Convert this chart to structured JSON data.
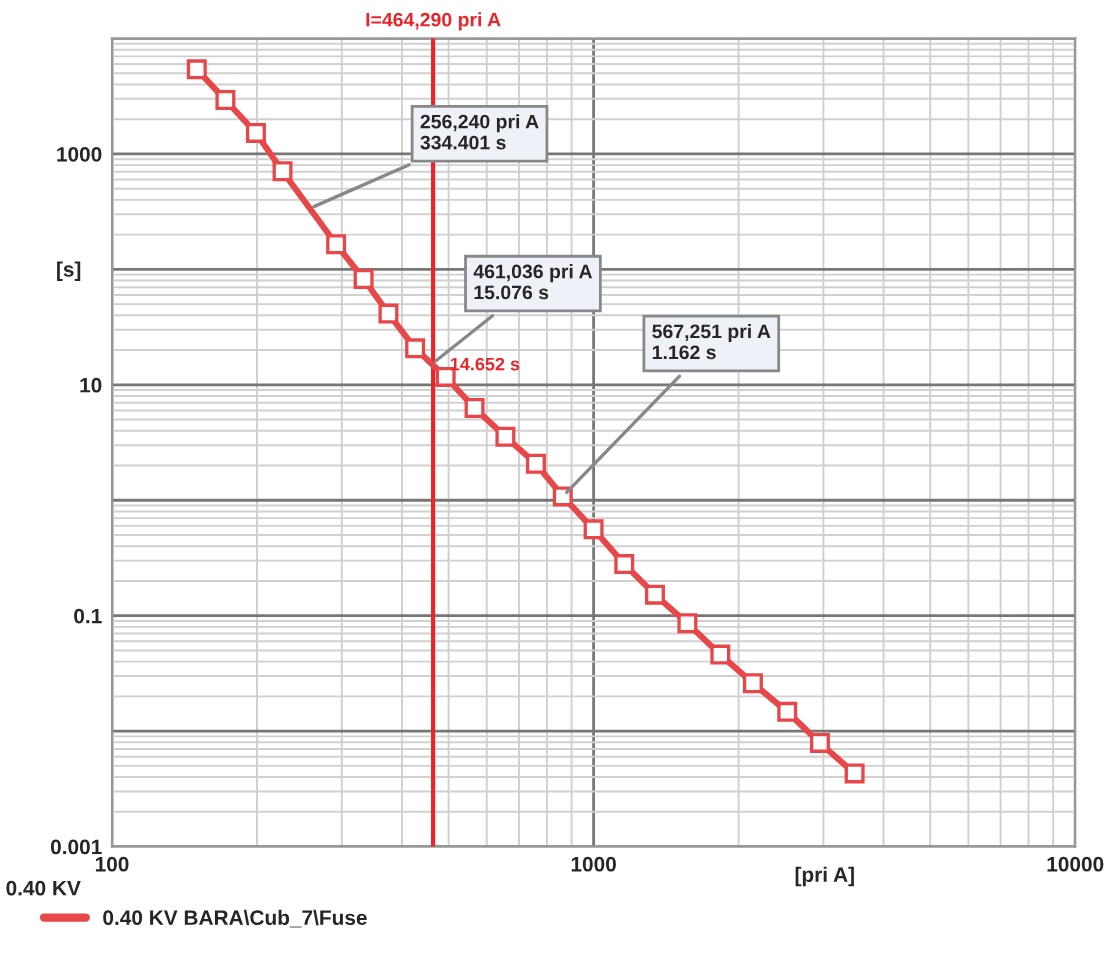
{
  "chart_data": {
    "type": "line",
    "xlabel": "[pri A]",
    "ylabel": "[s]",
    "x": [
      150,
      172,
      199,
      226,
      292,
      333,
      375,
      426,
      493,
      566,
      656,
      759,
      863,
      1000,
      1158,
      1341,
      1566,
      1833,
      2142,
      2524,
      2951,
      3483
    ],
    "series": [
      {
        "name": "0.40 KV BARA\\Cub_7\\Fuse",
        "color": "#e8474a",
        "values": [
          5400,
          2930,
          1520,
          708,
          165,
          82.5,
          41.4,
          20.7,
          11.7,
          6.3,
          3.55,
          2.07,
          1.08,
          0.56,
          0.28,
          0.152,
          0.086,
          0.046,
          0.026,
          0.0147,
          0.0079,
          0.0043
        ]
      }
    ],
    "log": "xy",
    "xlim": [
      100,
      10000
    ],
    "ylim": [
      0.001,
      10000
    ],
    "xticks": [
      100,
      1000,
      10000
    ],
    "yticks": [
      0.001,
      {
        "value": 0.01,
        "label": null
      },
      0.1,
      {
        "value": 1,
        "label": null
      },
      10,
      {
        "value": 100,
        "label": null
      },
      1000,
      {
        "value": 10000,
        "label": null
      }
    ],
    "grid": true,
    "marker": "square",
    "line_style": "solid",
    "legend": "bottom left",
    "ref_lines": [
      {
        "axis": "x",
        "value": 464.29,
        "label": "I=464,290 pri A",
        "color": "#e8262a"
      }
    ],
    "annotations": [
      {
        "text": "256,240 pri A\n334.401 s",
        "x": 256.24,
        "y": 334.401
      },
      {
        "text": "461,036 pri A\n15.076 s",
        "x": 461.036,
        "y": 15.076
      },
      {
        "text": "567,251 pri A\n1.162 s",
        "x": 863,
        "y": 1.08
      },
      {
        "text": "14.652 s",
        "x": 464.29,
        "y": 14.652
      },
      "0.40 KV"
    ]
  }
}
